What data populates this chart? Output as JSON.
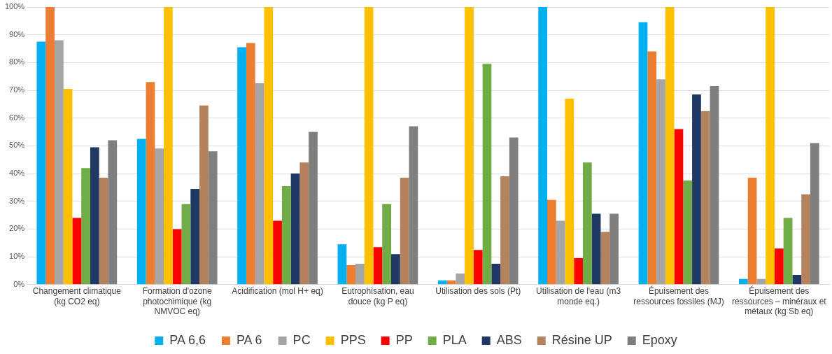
{
  "chart_data": {
    "type": "bar",
    "categories": [
      "Changement climatique (kg CO2 eq)",
      "Formation d'ozone photochimique (kg NMVOC eq)",
      "Acidification (mol H+ eq)",
      "Eutrophisation, eau douce (kg P eq)",
      "Utilisation des sols (Pt)",
      "Utilisation de l'eau (m3 monde eq.)",
      "Épuisement des ressources fossiles (MJ)",
      "Épuisement des ressources – minéraux et métaux (kg Sb eq)"
    ],
    "series": [
      {
        "name": "PA 6,6",
        "color": "#00b0f0",
        "values": [
          87.5,
          52.5,
          85.5,
          14.5,
          1.5,
          100,
          94.5,
          2
        ]
      },
      {
        "name": "PA 6",
        "color": "#ed7d31",
        "values": [
          100,
          73,
          87,
          7,
          1.5,
          30.5,
          84,
          38.5
        ]
      },
      {
        "name": "PC",
        "color": "#a5a5a5",
        "values": [
          88,
          49,
          72.5,
          7.5,
          4,
          23,
          74,
          2
        ]
      },
      {
        "name": "PPS",
        "color": "#ffc000",
        "values": [
          70.5,
          100,
          100,
          100,
          100,
          67,
          100,
          100
        ]
      },
      {
        "name": "PP",
        "color": "#ff0000",
        "values": [
          24,
          20,
          23,
          13.5,
          12.5,
          9.5,
          56,
          13
        ]
      },
      {
        "name": "PLA",
        "color": "#70ad47",
        "values": [
          42,
          29,
          35.5,
          29,
          79.5,
          44,
          37.5,
          24
        ]
      },
      {
        "name": "ABS",
        "color": "#203864",
        "values": [
          49.5,
          34.5,
          40,
          11,
          7.5,
          25.5,
          68.5,
          3.5
        ]
      },
      {
        "name": "Résine UP",
        "color": "#b5825e",
        "values": [
          38.5,
          64.5,
          44,
          38.5,
          39,
          19,
          62.5,
          32.5
        ]
      },
      {
        "name": "Epoxy",
        "color": "#7f7f7f",
        "values": [
          52,
          48,
          55,
          57,
          53,
          25.5,
          71.5,
          51
        ]
      }
    ],
    "ylim": [
      0,
      100
    ],
    "yticks": [
      {
        "value": 0,
        "label": "0%"
      },
      {
        "value": 10,
        "label": "10%"
      },
      {
        "value": 20,
        "label": "20%"
      },
      {
        "value": 30,
        "label": "30%"
      },
      {
        "value": 40,
        "label": "40%"
      },
      {
        "value": 50,
        "label": "50%"
      },
      {
        "value": 60,
        "label": "60%"
      },
      {
        "value": 70,
        "label": "70%"
      },
      {
        "value": 80,
        "label": "80%"
      },
      {
        "value": 90,
        "label": "90%"
      },
      {
        "value": 100,
        "label": "100%"
      }
    ],
    "grid": "y",
    "legend": "bottom"
  }
}
